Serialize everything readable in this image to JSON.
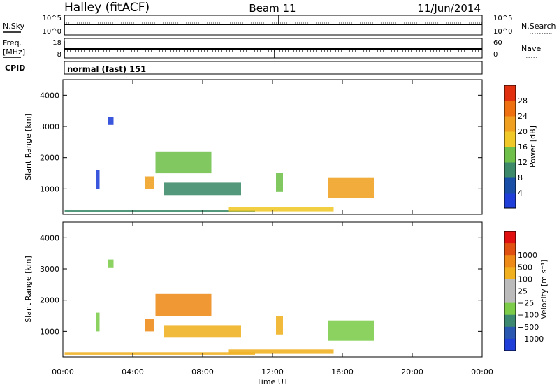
{
  "header": {
    "station": "Halley (fitACF)",
    "beam": "Beam 11",
    "date": "11/Jun/2014"
  },
  "top_panels": {
    "nsky": {
      "label": "N.Sky",
      "tick_top": "10^5",
      "tick_bottom": "10^0"
    },
    "nsearch": {
      "label": "N.Search",
      "tick_top": "10^5",
      "tick_bottom": "10^0"
    },
    "freq": {
      "label_line1": "Freq.",
      "label_line2": "[MHz]",
      "tick_top": "18",
      "tick_bottom": "8"
    },
    "nave": {
      "label": "Nave",
      "tick_top": "60",
      "tick_bottom": "0"
    },
    "cpid": {
      "label": "CPID",
      "value": "normal (fast) 151"
    }
  },
  "colors": {
    "power": [
      "#1f3fd8",
      "#1a4fa8",
      "#3c8a6a",
      "#6fc04a",
      "#f0c828",
      "#f0a020",
      "#ee7010",
      "#e03010",
      "#e01010"
    ],
    "velocity": [
      "#1f3fd8",
      "#2a58b0",
      "#3d8870",
      "#7ccc4a",
      "#bbbbbb",
      "#bbbbbb",
      "#f0b020",
      "#ee8a18",
      "#e05010",
      "#e01010"
    ]
  },
  "chart_data": [
    {
      "type": "heatmap",
      "name": "power",
      "ylabel": "Slant Range [km]",
      "ylim": [
        180,
        4500
      ],
      "yticks": [
        1000,
        2000,
        3000,
        4000
      ],
      "xlim": [
        0,
        24
      ],
      "colorbar_label": "Power [dB]",
      "colorbar_ticks": [
        "4",
        "8",
        "12",
        "16",
        "20",
        "24",
        "28"
      ],
      "colorbar_range": [
        0,
        32
      ],
      "blobs": [
        {
          "x0": 0.1,
          "x1": 11.0,
          "y0": 250,
          "y1": 330,
          "level": 2
        },
        {
          "x0": 9.5,
          "x1": 15.5,
          "y0": 280,
          "y1": 420,
          "level": 4
        },
        {
          "x0": 4.7,
          "x1": 5.2,
          "y0": 1000,
          "y1": 1400,
          "level": 5
        },
        {
          "x0": 5.3,
          "x1": 8.5,
          "y0": 1500,
          "y1": 2200,
          "level": 3
        },
        {
          "x0": 5.8,
          "x1": 10.2,
          "y0": 800,
          "y1": 1200,
          "level": 2
        },
        {
          "x0": 12.2,
          "x1": 12.6,
          "y0": 900,
          "y1": 1500,
          "level": 3
        },
        {
          "x0": 15.2,
          "x1": 17.8,
          "y0": 700,
          "y1": 1350,
          "level": 5
        },
        {
          "x0": 2.6,
          "x1": 2.9,
          "y0": 3050,
          "y1": 3300,
          "level": 0
        },
        {
          "x0": 1.9,
          "x1": 2.1,
          "y0": 1000,
          "y1": 1600,
          "level": 0
        }
      ]
    },
    {
      "type": "heatmap",
      "name": "velocity",
      "xlabel": "Time UT",
      "ylabel": "Slant Range [km]",
      "ylim": [
        180,
        4500
      ],
      "yticks": [
        1000,
        2000,
        3000,
        4000
      ],
      "xlim": [
        0,
        24
      ],
      "xticks": [
        "00:00",
        "04:00",
        "08:00",
        "12:00",
        "16:00",
        "20:00",
        "00:00"
      ],
      "colorbar_label": "Velocity [m s⁻¹]",
      "colorbar_ticks": [
        "-1000",
        "-500",
        "-100",
        "-25",
        "25",
        "100",
        "500",
        "1000"
      ],
      "blobs": [
        {
          "x0": 0.1,
          "x1": 11.0,
          "y0": 250,
          "y1": 330,
          "level": 6
        },
        {
          "x0": 9.5,
          "x1": 15.5,
          "y0": 280,
          "y1": 420,
          "level": 6
        },
        {
          "x0": 4.7,
          "x1": 5.2,
          "y0": 1000,
          "y1": 1400,
          "level": 7
        },
        {
          "x0": 5.3,
          "x1": 8.5,
          "y0": 1500,
          "y1": 2200,
          "level": 7
        },
        {
          "x0": 5.8,
          "x1": 10.2,
          "y0": 800,
          "y1": 1200,
          "level": 6
        },
        {
          "x0": 12.2,
          "x1": 12.6,
          "y0": 900,
          "y1": 1500,
          "level": 6
        },
        {
          "x0": 15.2,
          "x1": 17.8,
          "y0": 700,
          "y1": 1350,
          "level": 3
        },
        {
          "x0": 2.6,
          "x1": 2.9,
          "y0": 3050,
          "y1": 3300,
          "level": 3
        },
        {
          "x0": 1.9,
          "x1": 2.1,
          "y0": 1000,
          "y1": 1600,
          "level": 3
        }
      ]
    }
  ]
}
